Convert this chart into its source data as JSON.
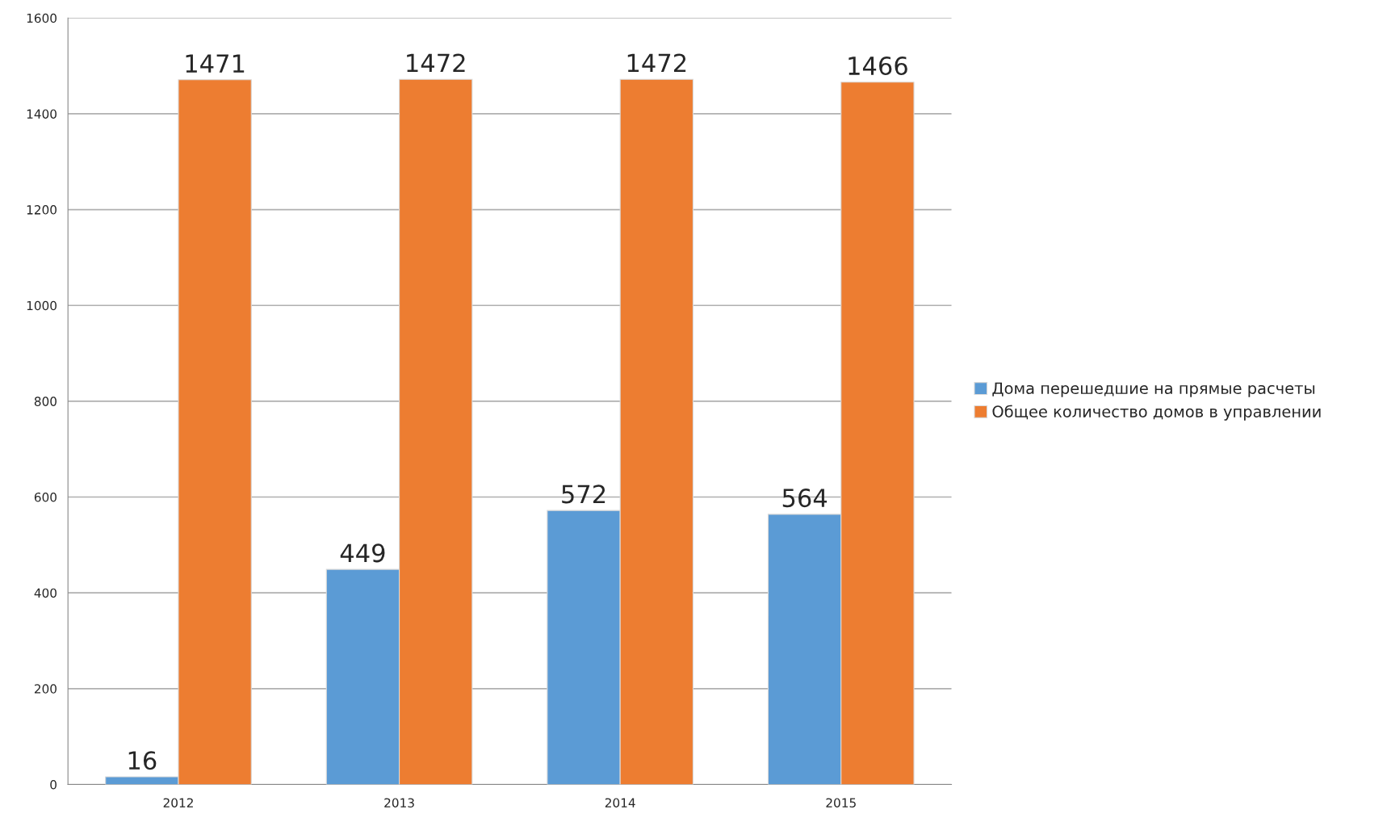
{
  "chart_data": {
    "type": "bar",
    "categories": [
      "2012",
      "2013",
      "2014",
      "2015"
    ],
    "series": [
      {
        "name": "Дома перешедшие на прямые расчеты",
        "color": "#5b9bd5",
        "values": [
          16,
          449,
          572,
          564
        ]
      },
      {
        "name": "Общее количество домов в управлении",
        "color": "#ed7d31",
        "values": [
          1471,
          1472,
          1472,
          1466
        ]
      }
    ],
    "ylim": [
      0,
      1600
    ],
    "yticks": [
      0,
      200,
      400,
      600,
      800,
      1000,
      1200,
      1400,
      1600
    ],
    "grid": "y",
    "legend": "right",
    "data_labels": true
  }
}
